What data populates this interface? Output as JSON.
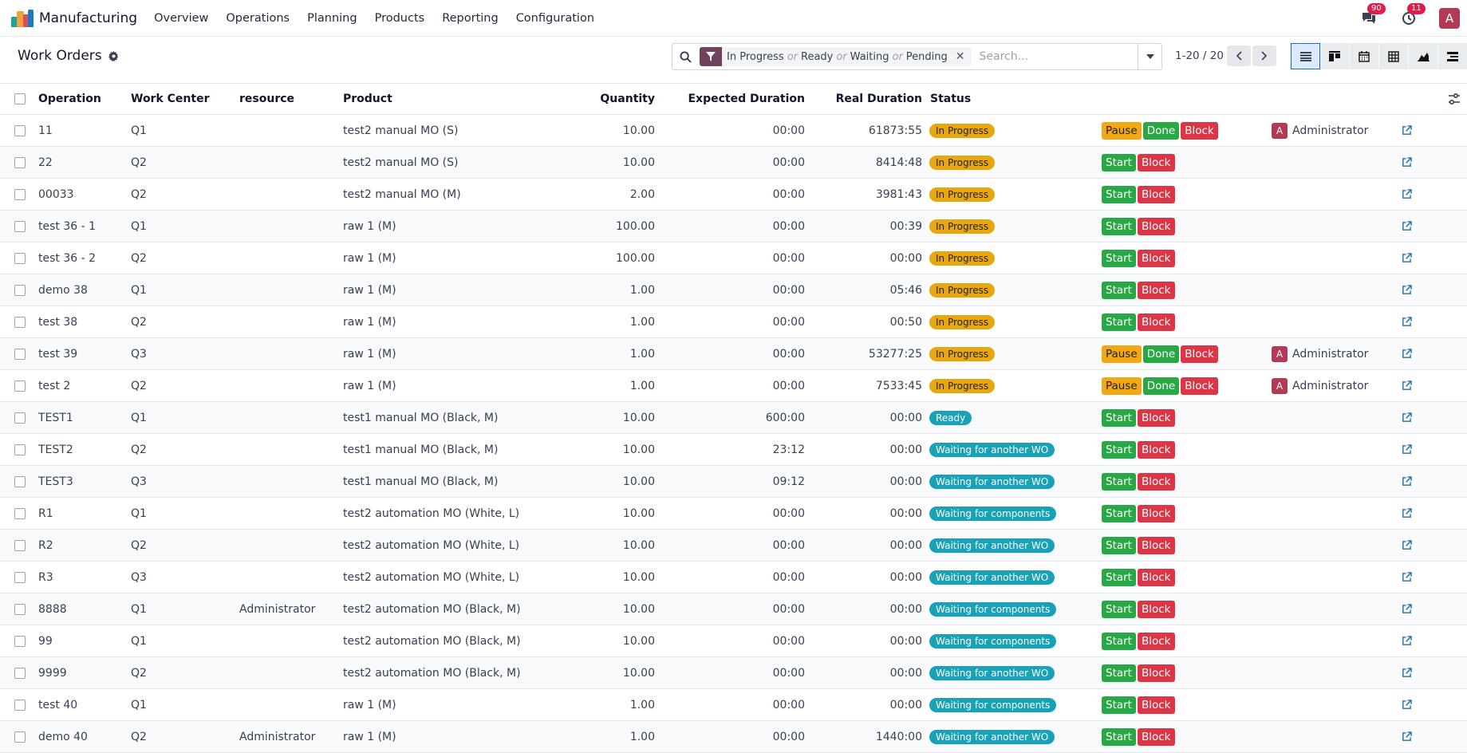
{
  "navbar": {
    "app_title": "Manufacturing",
    "menu": [
      "Overview",
      "Operations",
      "Planning",
      "Products",
      "Reporting",
      "Configuration"
    ],
    "messages_count": "90",
    "activities_count": "11",
    "user_initial": "A",
    "brand_color": "#71425f"
  },
  "control": {
    "title": "Work Orders",
    "filter_values": [
      "In Progress",
      "Ready",
      "Waiting",
      "Pending"
    ],
    "filter_or": "or",
    "search_placeholder": "Search...",
    "pager": "1-20 / 20"
  },
  "table": {
    "headers": {
      "operation": "Operation",
      "work_center": "Work Center",
      "resource": "resource",
      "product": "Product",
      "quantity": "Quantity",
      "expected": "Expected Duration",
      "real": "Real Duration",
      "status": "Status"
    },
    "rows": [
      {
        "op": "11",
        "wc": "Q1",
        "res": "",
        "product": "test2 manual MO (S)",
        "qty": "10.00",
        "exp": "00:00",
        "real": "61873:55",
        "status": "In Progress",
        "kind": "progress",
        "actions": [
          "Pause",
          "Done",
          "Block"
        ],
        "user": "Administrator"
      },
      {
        "op": "22",
        "wc": "Q2",
        "res": "",
        "product": "test2 manual MO (S)",
        "qty": "10.00",
        "exp": "00:00",
        "real": "8414:48",
        "status": "In Progress",
        "kind": "progress",
        "actions": [
          "Start",
          "Block"
        ],
        "user": ""
      },
      {
        "op": "00033",
        "wc": "Q2",
        "res": "",
        "product": "test2 manual MO (M)",
        "qty": "2.00",
        "exp": "00:00",
        "real": "3981:43",
        "status": "In Progress",
        "kind": "progress",
        "actions": [
          "Start",
          "Block"
        ],
        "user": ""
      },
      {
        "op": "test 36 - 1",
        "wc": "Q1",
        "res": "",
        "product": "raw 1 (M)",
        "qty": "100.00",
        "exp": "00:00",
        "real": "00:39",
        "status": "In Progress",
        "kind": "progress",
        "actions": [
          "Start",
          "Block"
        ],
        "user": ""
      },
      {
        "op": "test 36 - 2",
        "wc": "Q2",
        "res": "",
        "product": "raw 1 (M)",
        "qty": "100.00",
        "exp": "00:00",
        "real": "00:00",
        "status": "In Progress",
        "kind": "progress",
        "actions": [
          "Start",
          "Block"
        ],
        "user": ""
      },
      {
        "op": "demo 38",
        "wc": "Q1",
        "res": "",
        "product": "raw 1 (M)",
        "qty": "1.00",
        "exp": "00:00",
        "real": "05:46",
        "status": "In Progress",
        "kind": "progress",
        "actions": [
          "Start",
          "Block"
        ],
        "user": ""
      },
      {
        "op": "test 38",
        "wc": "Q2",
        "res": "",
        "product": "raw 1 (M)",
        "qty": "1.00",
        "exp": "00:00",
        "real": "00:50",
        "status": "In Progress",
        "kind": "progress",
        "actions": [
          "Start",
          "Block"
        ],
        "user": ""
      },
      {
        "op": "test 39",
        "wc": "Q3",
        "res": "",
        "product": "raw 1 (M)",
        "qty": "1.00",
        "exp": "00:00",
        "real": "53277:25",
        "status": "In Progress",
        "kind": "progress",
        "actions": [
          "Pause",
          "Done",
          "Block"
        ],
        "user": "Administrator"
      },
      {
        "op": "test 2",
        "wc": "Q2",
        "res": "",
        "product": "raw 1 (M)",
        "qty": "1.00",
        "exp": "00:00",
        "real": "7533:45",
        "status": "In Progress",
        "kind": "progress",
        "actions": [
          "Pause",
          "Done",
          "Block"
        ],
        "user": "Administrator"
      },
      {
        "op": "TEST1",
        "wc": "Q1",
        "res": "",
        "product": "test1 manual MO (Black, M)",
        "qty": "10.00",
        "exp": "600:00",
        "real": "00:00",
        "status": "Ready",
        "kind": "ready",
        "actions": [
          "Start",
          "Block"
        ],
        "user": ""
      },
      {
        "op": "TEST2",
        "wc": "Q2",
        "res": "",
        "product": "test1 manual MO (Black, M)",
        "qty": "10.00",
        "exp": "23:12",
        "real": "00:00",
        "status": "Waiting for another WO",
        "kind": "waiting",
        "actions": [
          "Start",
          "Block"
        ],
        "user": ""
      },
      {
        "op": "TEST3",
        "wc": "Q3",
        "res": "",
        "product": "test1 manual MO (Black, M)",
        "qty": "10.00",
        "exp": "09:12",
        "real": "00:00",
        "status": "Waiting for another WO",
        "kind": "waiting",
        "actions": [
          "Start",
          "Block"
        ],
        "user": ""
      },
      {
        "op": "R1",
        "wc": "Q1",
        "res": "",
        "product": "test2 automation MO (White, L)",
        "qty": "10.00",
        "exp": "00:00",
        "real": "00:00",
        "status": "Waiting for components",
        "kind": "waiting",
        "actions": [
          "Start",
          "Block"
        ],
        "user": ""
      },
      {
        "op": "R2",
        "wc": "Q2",
        "res": "",
        "product": "test2 automation MO (White, L)",
        "qty": "10.00",
        "exp": "00:00",
        "real": "00:00",
        "status": "Waiting for another WO",
        "kind": "waiting",
        "actions": [
          "Start",
          "Block"
        ],
        "user": ""
      },
      {
        "op": "R3",
        "wc": "Q3",
        "res": "",
        "product": "test2 automation MO (White, L)",
        "qty": "10.00",
        "exp": "00:00",
        "real": "00:00",
        "status": "Waiting for another WO",
        "kind": "waiting",
        "actions": [
          "Start",
          "Block"
        ],
        "user": ""
      },
      {
        "op": "8888",
        "wc": "Q1",
        "res": "Administrator",
        "product": "test2 automation MO (Black, M)",
        "qty": "10.00",
        "exp": "00:00",
        "real": "00:00",
        "status": "Waiting for components",
        "kind": "waiting",
        "actions": [
          "Start",
          "Block"
        ],
        "user": ""
      },
      {
        "op": "99",
        "wc": "Q1",
        "res": "",
        "product": "test2 automation MO (Black, M)",
        "qty": "10.00",
        "exp": "00:00",
        "real": "00:00",
        "status": "Waiting for components",
        "kind": "waiting",
        "actions": [
          "Start",
          "Block"
        ],
        "user": ""
      },
      {
        "op": "9999",
        "wc": "Q2",
        "res": "",
        "product": "test2 automation MO (Black, M)",
        "qty": "10.00",
        "exp": "00:00",
        "real": "00:00",
        "status": "Waiting for another WO",
        "kind": "waiting",
        "actions": [
          "Start",
          "Block"
        ],
        "user": ""
      },
      {
        "op": "test 40",
        "wc": "Q1",
        "res": "",
        "product": "raw 1 (M)",
        "qty": "1.00",
        "exp": "00:00",
        "real": "00:00",
        "status": "Waiting for components",
        "kind": "waiting",
        "actions": [
          "Start",
          "Block"
        ],
        "user": ""
      },
      {
        "op": "demo 40",
        "wc": "Q2",
        "res": "Administrator",
        "product": "raw 1 (M)",
        "qty": "1.00",
        "exp": "00:00",
        "real": "1440:00",
        "status": "Waiting for another WO",
        "kind": "waiting",
        "actions": [
          "Start",
          "Block"
        ],
        "user": ""
      }
    ]
  }
}
